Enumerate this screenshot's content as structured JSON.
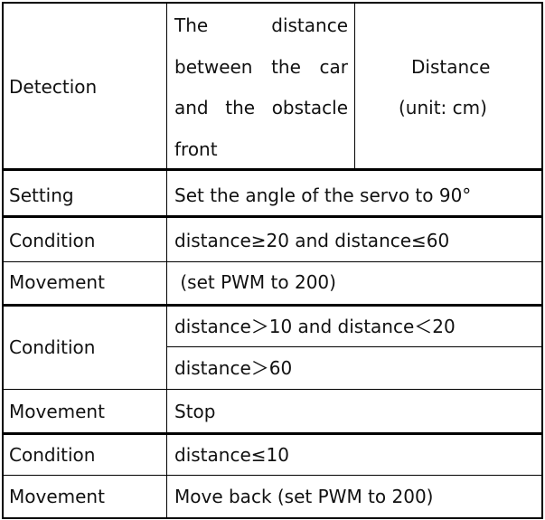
{
  "table": {
    "detection": {
      "label": "Detection",
      "desc_lines": [
        [
          "The",
          "distance"
        ],
        [
          "between",
          "the",
          "car"
        ],
        [
          "and",
          "the",
          "obstacle"
        ],
        [
          "front"
        ]
      ],
      "distance_line1": "Distance",
      "distance_line2": "(unit:  cm)"
    },
    "setting": {
      "label": "Setting",
      "value": "Set the angle of the servo to 90°"
    },
    "rule1": {
      "condition_label": "Condition",
      "condition": "distance≥20 and distance≤60",
      "movement_label": "Movement",
      "movement": " (set PWM to 200)"
    },
    "rule2": {
      "condition_label": "Condition",
      "condition_a": "distance＞10 and distance＜20",
      "condition_b": "distance＞60",
      "movement_label": "Movement",
      "movement": "Stop"
    },
    "rule3": {
      "condition_label": "Condition",
      "condition": "distance≤10",
      "movement_label": "Movement",
      "movement": "Move back (set PWM to 200)"
    }
  }
}
